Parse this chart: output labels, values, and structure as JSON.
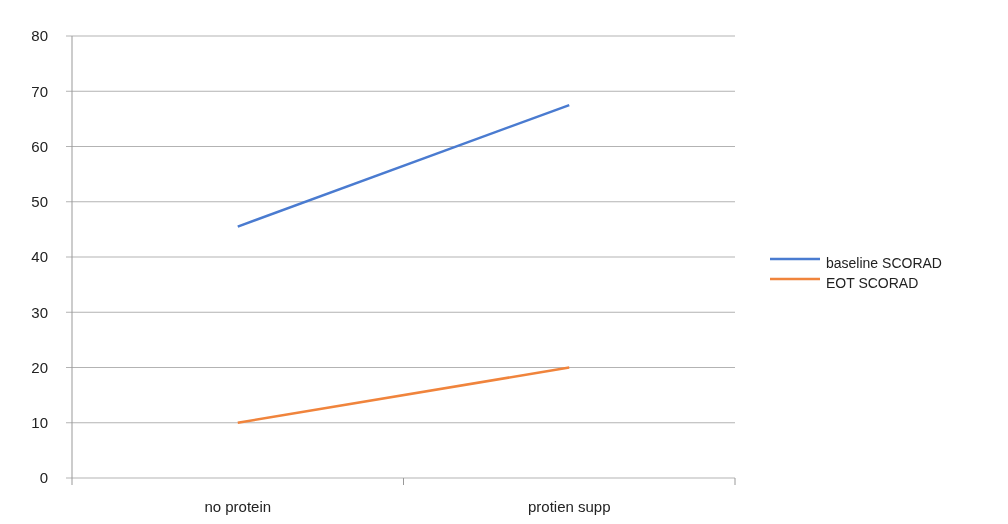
{
  "chart_data": {
    "type": "line",
    "categories": [
      "no protein",
      "protien supp"
    ],
    "series": [
      {
        "name": "baseline SCORAD",
        "color": "#4a7bd0",
        "values": [
          45.5,
          67.5
        ]
      },
      {
        "name": "EOT SCORAD",
        "color": "#f0843c",
        "values": [
          10,
          20
        ]
      }
    ],
    "ylim": [
      0,
      80
    ],
    "yticks": [
      0,
      10,
      20,
      30,
      40,
      50,
      60,
      70,
      80
    ],
    "grid": "y",
    "legend": "right",
    "marker": "none",
    "line_style": "solid"
  }
}
